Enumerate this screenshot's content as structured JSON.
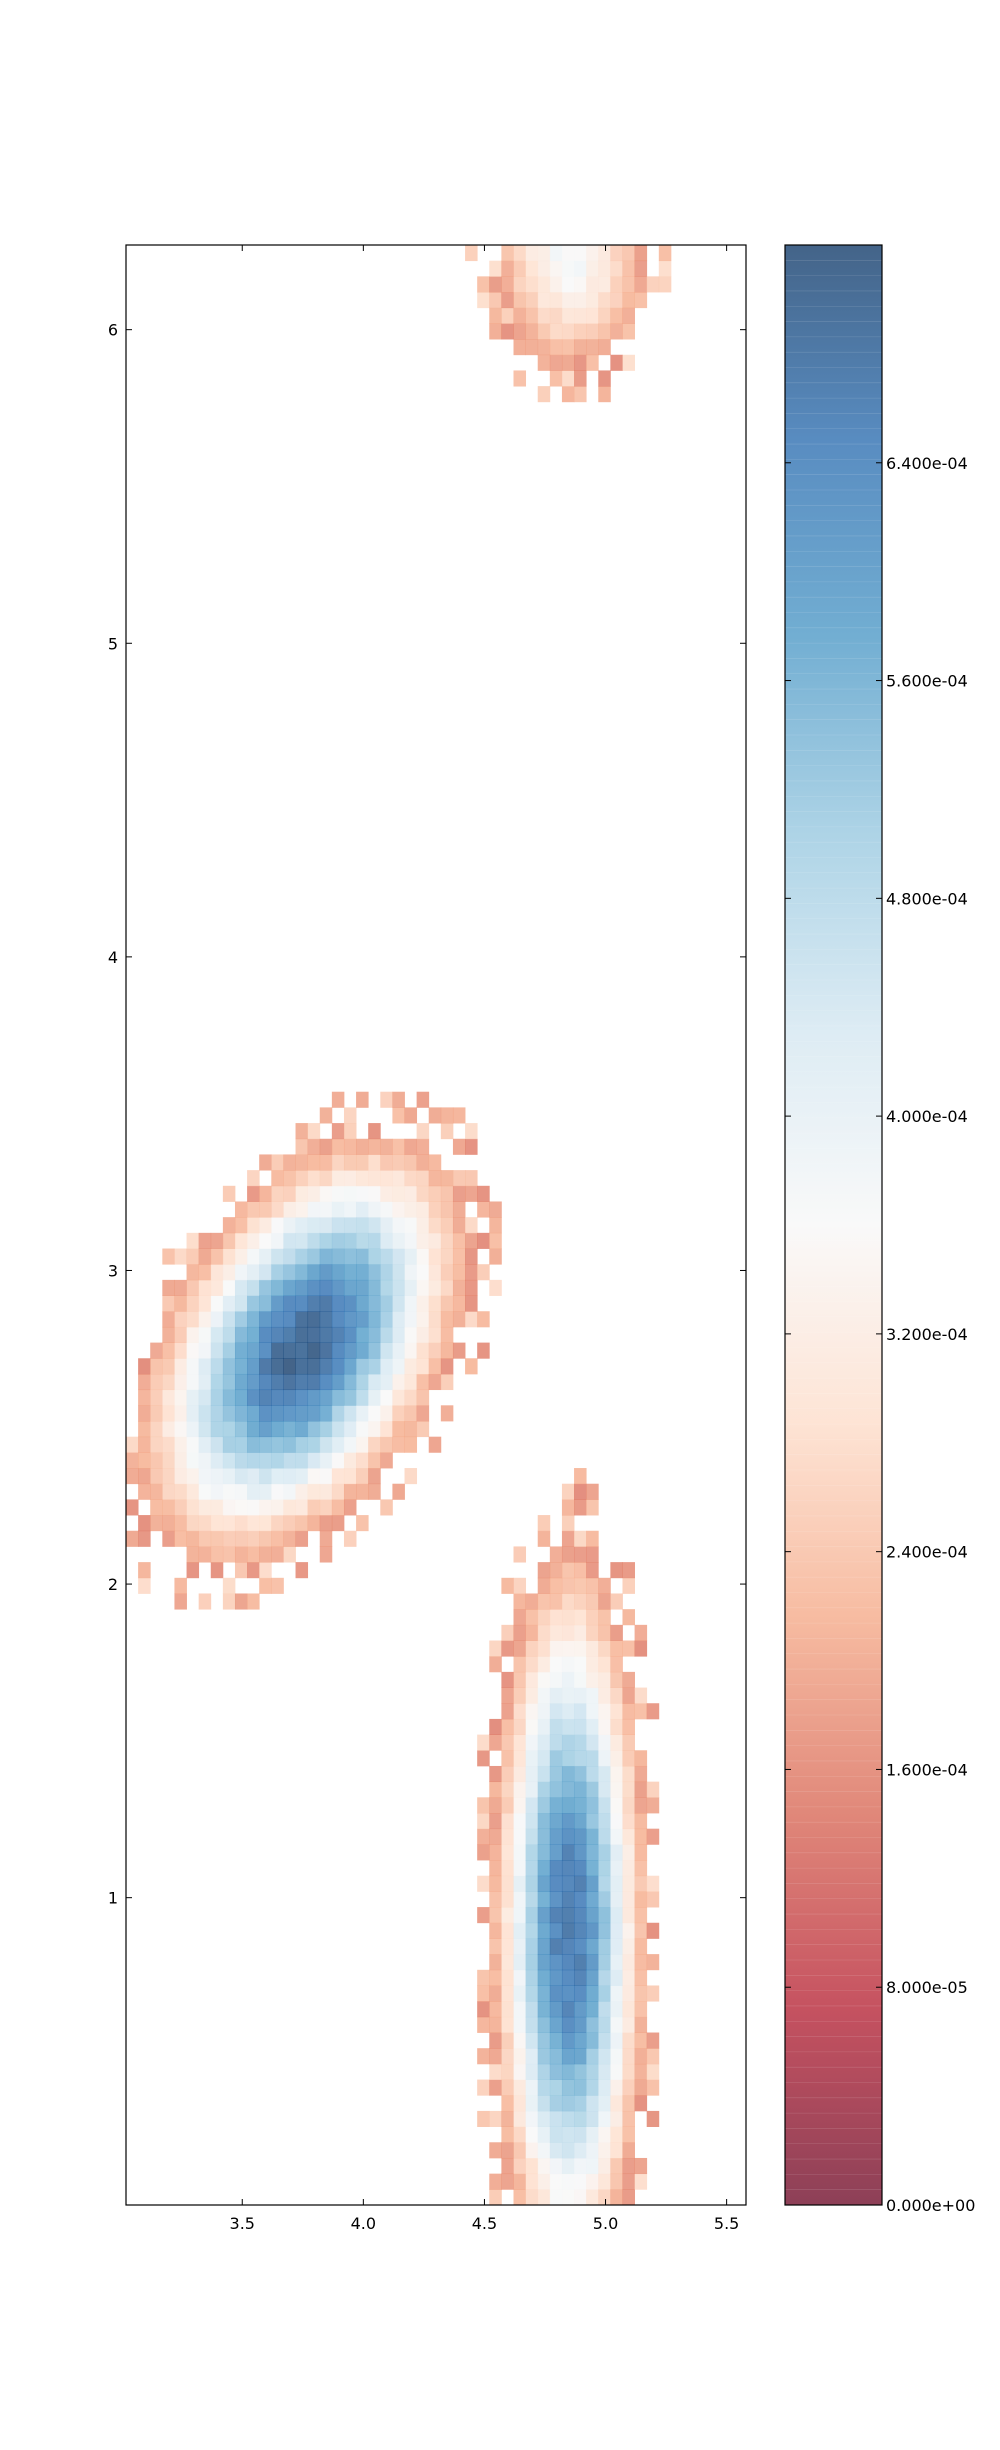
{
  "chart_data": {
    "type": "heatmap",
    "title": "",
    "xlabel": "",
    "ylabel": "",
    "xlim": [
      3.02,
      5.58
    ],
    "ylim": [
      0.02,
      6.27
    ],
    "x_ticks": [
      3.5,
      4.0,
      4.5,
      5.0,
      5.5
    ],
    "x_tick_labels": [
      "3.5",
      "4.0",
      "4.5",
      "5.0",
      "5.5"
    ],
    "y_ticks": [
      1,
      2,
      3,
      4,
      5,
      6
    ],
    "y_tick_labels": [
      "1",
      "2",
      "3",
      "4",
      "5",
      "6"
    ],
    "grid": false,
    "bin_size": [
      0.05,
      0.05
    ],
    "colormap": {
      "name": "RdBu",
      "min": 0.0,
      "max": 0.00072,
      "colors": [
        "#67001f",
        "#b2182b",
        "#d6604d",
        "#f4a582",
        "#fddbc7",
        "#f7f7f7",
        "#d1e5f0",
        "#92c5de",
        "#4393c3",
        "#2166ac",
        "#053061"
      ],
      "alpha": 0.75
    },
    "colorbar": {
      "ticks": [
        0.0,
        8e-05,
        0.00016,
        0.00024,
        0.00032,
        0.0004,
        0.00048,
        0.00056,
        0.00064
      ],
      "tick_labels": [
        "0.000e+00",
        "8.000e-05",
        "1.600e-04",
        "2.400e-04",
        "3.200e-04",
        "4.000e-04",
        "4.800e-04",
        "5.600e-04",
        "6.400e-04"
      ]
    },
    "density_peaks": [
      {
        "x": 3.75,
        "y": 2.75,
        "value": 0.00071
      },
      {
        "x": 4.85,
        "y": 0.9,
        "value": 0.00068
      },
      {
        "x": 4.85,
        "y": 6.25,
        "value": 0.00037
      }
    ]
  }
}
